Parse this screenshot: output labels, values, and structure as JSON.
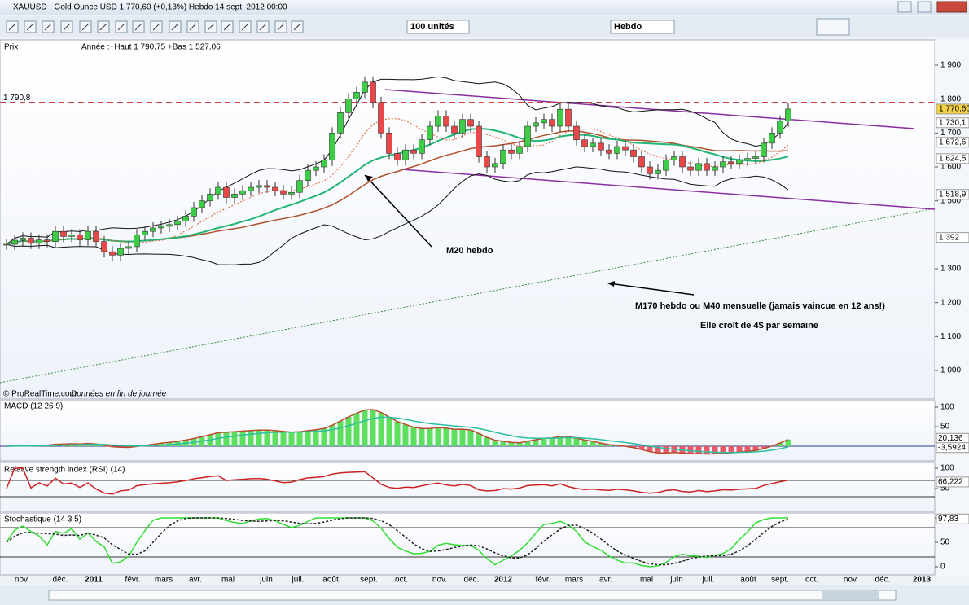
{
  "window": {
    "title": "XAUUSD - Gold Ounce USD   1 770,60 (+0,13%)   Hebdo  14 sept. 2012 00:00"
  },
  "toolbar": {
    "units": "100 unités",
    "period": "Hebdo"
  },
  "price_panel": {
    "label": "Prix",
    "info": "Année :+Haut 1 790,75 +Bas 1 527,06",
    "ylim": [
      916,
      1972
    ],
    "yticks": [
      {
        "value": 1900,
        "label": "1 900"
      },
      {
        "value": 1800,
        "label": "1 800"
      },
      {
        "value": 1700,
        "label": "1 700"
      },
      {
        "value": 1600,
        "label": "1 600"
      },
      {
        "value": 1500,
        "label": "1 500"
      },
      {
        "value": 1300,
        "label": "1 300"
      },
      {
        "value": 1200,
        "label": "1 200"
      },
      {
        "value": 1100,
        "label": "1 100"
      },
      {
        "value": 1000,
        "label": "1 000"
      }
    ],
    "level": {
      "value": 1790.8,
      "label": "1 790,8"
    },
    "tags": [
      {
        "value": 1770.6,
        "label": "1 770,60",
        "color": "#000000",
        "bg": "#f5d547"
      },
      {
        "value": 1730.1,
        "label": "1 730,1",
        "color": "#000000",
        "bg": "#ffffff"
      },
      {
        "value": 1672.6,
        "label": "1 672,6",
        "color": "#2a9d4a",
        "bg": "#ffffff"
      },
      {
        "value": 1624.5,
        "label": "1 624,5",
        "color": "#2a9d4a",
        "bg": "#ffffff"
      },
      {
        "value": 1518.9,
        "label": "1 518,9",
        "color": "#000000",
        "bg": "#ffffff"
      },
      {
        "value": 1392,
        "label": "1 392",
        "color": "#2a9d4a",
        "bg": "#ffffff"
      }
    ],
    "closes": [
      1372,
      1384,
      1390,
      1375,
      1385,
      1380,
      1410,
      1395,
      1400,
      1385,
      1410,
      1380,
      1350,
      1340,
      1360,
      1365,
      1400,
      1410,
      1420,
      1425,
      1430,
      1440,
      1455,
      1480,
      1500,
      1520,
      1540,
      1510,
      1520,
      1530,
      1540,
      1545,
      1540,
      1530,
      1520,
      1525,
      1560,
      1590,
      1600,
      1620,
      1700,
      1760,
      1800,
      1820,
      1850,
      1790,
      1700,
      1640,
      1620,
      1650,
      1640,
      1680,
      1720,
      1750,
      1720,
      1700,
      1740,
      1720,
      1630,
      1600,
      1610,
      1650,
      1640,
      1660,
      1720,
      1730,
      1740,
      1720,
      1770,
      1720,
      1680,
      1660,
      1670,
      1650,
      1640,
      1660,
      1650,
      1630,
      1600,
      1580,
      1590,
      1620,
      1630,
      1600,
      1590,
      1610,
      1590,
      1600,
      1615,
      1610,
      1620,
      1625,
      1630,
      1670,
      1700,
      1735,
      1770.6
    ],
    "annotations": [
      "M20 hebdo",
      "M170 hebdo ou M40 mensuelle (jamais vaincue en 12 ans!)",
      "Elle croît de 4$ par semaine"
    ],
    "credit": "© ProRealTime.com",
    "credit_note": "Données en fin de journée"
  },
  "macd": {
    "label": "MACD (12 26 9)",
    "yticks": [
      100,
      50
    ],
    "tags": [
      {
        "value": 20.136,
        "label": "20,136"
      },
      {
        "value": -3.5924,
        "label": "-3,5924"
      }
    ]
  },
  "rsi": {
    "label": "Relative strength index (RSI) (14)",
    "yticks": [
      100,
      50
    ],
    "tags": [
      {
        "value": 66.222,
        "label": "66,222"
      }
    ]
  },
  "stoch": {
    "label": "Stochastique (14 3 5)",
    "yticks": [
      100,
      50,
      0
    ],
    "tags": [
      {
        "value": 97.83,
        "label": "97,83"
      }
    ]
  },
  "months": [
    "nov.",
    "déc.",
    "2011",
    "févr.",
    "mars",
    "avr.",
    "mai",
    "juin",
    "juil.",
    "août",
    "sept.",
    "oct.",
    "nov.",
    "déc.",
    "2012",
    "févr.",
    "mars",
    "avr.",
    "mai",
    "juin",
    "juil.",
    "août",
    "sept.",
    "oct.",
    "nov.",
    "déc.",
    "2013"
  ]
}
